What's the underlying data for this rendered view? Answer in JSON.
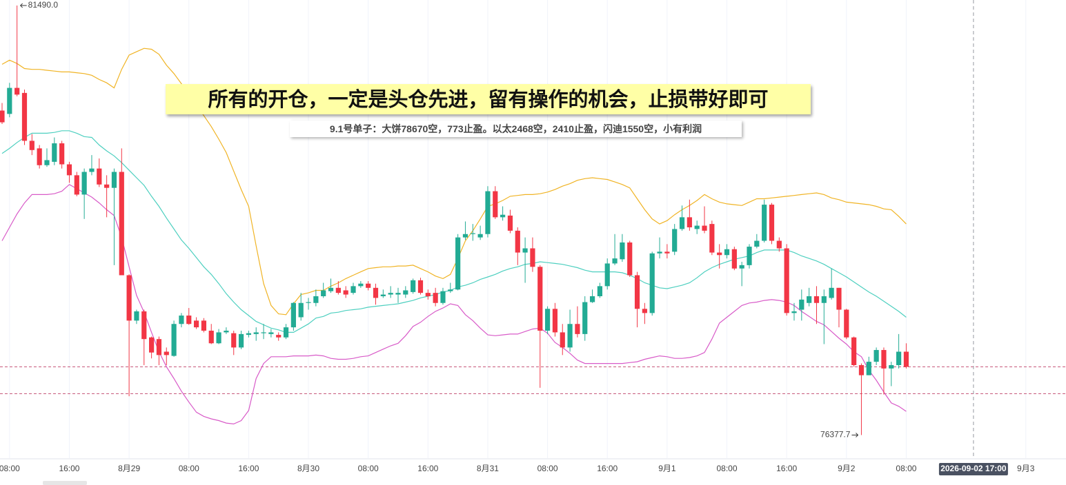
{
  "chart_data": {
    "type": "candlestick",
    "title": "所有的开仓，一定是头仓先进，留有操作的机会，止损带好即可",
    "subtitle": "9.1号单子：大饼78670空，773止盈。以太2468空，2410止盈，闪迪1550空，小有利润",
    "categories": [
      null,
      "08:00",
      null,
      null,
      null,
      null,
      null,
      null,
      null,
      "16:00",
      null,
      null,
      null,
      null,
      null,
      null,
      null,
      "8月29",
      null,
      null,
      null,
      null,
      null,
      null,
      null,
      "08:00",
      null,
      null,
      null,
      null,
      null,
      null,
      null,
      "16:00",
      null,
      null,
      null,
      null,
      null,
      null,
      null,
      "8月30",
      null,
      null,
      null,
      null,
      null,
      null,
      null,
      "08:00",
      null,
      null,
      null,
      null,
      null,
      null,
      null,
      "16:00",
      null,
      null,
      null,
      null,
      null,
      null,
      null,
      "8月31",
      null,
      null,
      null,
      null,
      null,
      null,
      null,
      "08:00",
      null,
      null,
      null,
      null,
      null,
      null,
      null,
      "16:00",
      null,
      null,
      null,
      null,
      null,
      null,
      null,
      "9月1",
      null,
      null,
      null,
      null,
      null,
      null,
      null,
      "08:00",
      null,
      null,
      null,
      null,
      null,
      null,
      null,
      "16:00",
      null,
      null,
      null,
      null,
      null,
      null,
      null,
      "9月2",
      null,
      null,
      null,
      null,
      null,
      null,
      null,
      "08:00",
      null,
      null,
      null,
      null,
      null,
      null,
      null,
      null,
      "2026-09-02 17:00",
      null,
      null,
      null,
      null,
      null,
      null,
      "9月3"
    ],
    "open": [
      80240,
      80200,
      80510,
      80450,
      79880,
      79790,
      79590,
      79630,
      79850,
      79600,
      79470,
      79240,
      79510,
      79550,
      79360,
      79320,
      79510,
      78280,
      77740,
      77850,
      77540,
      77520,
      77370,
      77320,
      77700,
      77800,
      77740,
      77740,
      77620,
      77470,
      77600,
      77590,
      77420,
      77570,
      77580,
      77590,
      77580,
      77570,
      77540,
      77660,
      77780,
      77950,
      77950,
      78030,
      78090,
      78130,
      78100,
      78070,
      78150,
      78180,
      78130,
      78030,
      78050,
      78050,
      78050,
      78080,
      78220,
      78070,
      78070,
      77950,
      78090,
      78110,
      78730,
      78770,
      78730,
      78770,
      79280,
      78970,
      78990,
      78810,
      78550,
      78600,
      78380,
      77620,
      77880,
      77600,
      77420,
      77700,
      77580,
      77960,
      78030,
      78150,
      78420,
      78470,
      78670,
      78280,
      77880,
      77830,
      78540,
      78560,
      78560,
      78830,
      78970,
      78830,
      78870,
      78890,
      78550,
      78520,
      78590,
      78360,
      78400,
      78620,
      78690,
      79120,
      78690,
      78600,
      77830,
      77870,
      77950,
      78030,
      77950,
      78010,
      78130,
      77870,
      77540,
      77210,
      77090,
      77250,
      77390,
      77170,
      77210,
      77370,
      null,
      null,
      null,
      null,
      null,
      null,
      null,
      null,
      null,
      null,
      null,
      null,
      null,
      null,
      null,
      null
    ],
    "high": [
      80330,
      80570,
      81490,
      80490,
      79960,
      79830,
      79790,
      79920,
      79880,
      79630,
      79510,
      79550,
      79710,
      79670,
      79470,
      79550,
      79790,
      78290,
      77870,
      77870,
      77550,
      77550,
      77420,
      77740,
      77830,
      77890,
      77780,
      77770,
      77700,
      77640,
      77660,
      77620,
      77620,
      77620,
      77660,
      77700,
      77640,
      77600,
      77700,
      77960,
      78070,
      78010,
      78110,
      78190,
      78240,
      78210,
      78150,
      78190,
      78210,
      78210,
      78180,
      78110,
      78150,
      78130,
      78150,
      78240,
      78250,
      78110,
      78130,
      78130,
      78190,
      78770,
      78920,
      78890,
      78870,
      79340,
      79340,
      79100,
      79060,
      78850,
      78730,
      78730,
      78400,
      77910,
      77950,
      77700,
      77870,
      77910,
      78030,
      78110,
      78190,
      78480,
      78770,
      78770,
      78690,
      78320,
      77950,
      78560,
      78730,
      78650,
      78890,
      79110,
      79180,
      78930,
      79100,
      78930,
      78650,
      78650,
      78620,
      78440,
      78650,
      78770,
      79180,
      79140,
      78730,
      78650,
      77950,
      78110,
      78130,
      78150,
      78110,
      78360,
      78130,
      77880,
      77550,
      77230,
      77310,
      77420,
      77420,
      77250,
      77580,
      77470,
      null,
      null,
      null,
      null,
      null,
      null,
      null,
      null,
      null,
      null,
      null,
      null,
      null,
      null,
      null,
      null
    ],
    "low": [
      80080,
      80160,
      80410,
      79830,
      79710,
      79550,
      79570,
      79590,
      79550,
      79380,
      79220,
      78950,
      79470,
      79330,
      78970,
      78400,
      78280,
      76840,
      77700,
      77210,
      77290,
      77210,
      77210,
      77310,
      77660,
      77690,
      77640,
      77600,
      77460,
      77460,
      77580,
      77330,
      77400,
      77540,
      77500,
      77520,
      77540,
      77500,
      77520,
      77620,
      77740,
      77870,
      77910,
      78010,
      78070,
      78050,
      78010,
      78050,
      78130,
      78100,
      77930,
      78010,
      78010,
      77950,
      78010,
      78060,
      78050,
      77990,
      77910,
      77930,
      78070,
      78100,
      78700,
      78690,
      78700,
      78730,
      78950,
      78930,
      78780,
      78400,
      78190,
      78320,
      76940,
      77580,
      77550,
      77330,
      77370,
      77540,
      77500,
      77950,
      78010,
      78110,
      78400,
      78440,
      78260,
      77660,
      77700,
      77800,
      78480,
      78480,
      78520,
      78810,
      78810,
      78770,
      78780,
      78520,
      78360,
      78480,
      78340,
      78150,
      78360,
      78600,
      78670,
      78650,
      78560,
      77800,
      77740,
      77740,
      77910,
      77700,
      77460,
      77990,
      77660,
      77520,
      77190,
      76377.7,
      77090,
      77210,
      76860,
      76960,
      77170,
      77170,
      null,
      null,
      null,
      null,
      null,
      null,
      null,
      null,
      null,
      null,
      null,
      null,
      null,
      null,
      null,
      null
    ],
    "close": [
      80100,
      80510,
      80430,
      79880,
      79770,
      79590,
      79650,
      79850,
      79600,
      79470,
      79240,
      79510,
      79550,
      79360,
      79320,
      79510,
      78280,
      77740,
      77850,
      77520,
      77360,
      77330,
      77330,
      77700,
      77800,
      77700,
      77660,
      77620,
      77470,
      77600,
      77620,
      77420,
      77580,
      77590,
      77600,
      77600,
      77600,
      77540,
      77660,
      77950,
      77950,
      77960,
      78030,
      78100,
      78130,
      78070,
      78050,
      78150,
      78180,
      78130,
      78010,
      78050,
      78070,
      78070,
      78100,
      78220,
      78070,
      78030,
      77950,
      78090,
      78110,
      78730,
      78770,
      78780,
      78770,
      79280,
      78970,
      79000,
      78810,
      78550,
      78600,
      78380,
      77620,
      77880,
      77600,
      77420,
      77700,
      77580,
      77960,
      78030,
      78150,
      78420,
      78480,
      78670,
      78280,
      77880,
      77830,
      78540,
      78560,
      78540,
      78830,
      78970,
      78850,
      78870,
      78810,
      78550,
      78520,
      78590,
      78360,
      78400,
      78620,
      78690,
      79120,
      78690,
      78600,
      77830,
      77850,
      77990,
      78030,
      77950,
      78030,
      78130,
      77870,
      77540,
      77210,
      77090,
      77250,
      77390,
      77170,
      77210,
      77370,
      77190,
      null,
      null,
      null,
      null,
      null,
      null,
      null,
      null,
      null,
      null,
      null,
      null,
      null,
      null,
      null,
      null
    ],
    "up_color": "#22ab94",
    "down_color": "#f23645",
    "lines": [
      {
        "color": "#f0b323",
        "values": [
          80790,
          80840,
          80800,
          80740,
          80730,
          80730,
          80720,
          80710,
          80700,
          80700,
          80690,
          80680,
          80660,
          80610,
          80570,
          80510,
          80730,
          80900,
          80940,
          80980,
          80970,
          80910,
          80780,
          80680,
          80560,
          80420,
          80300,
          80180,
          80050,
          79900,
          79740,
          79520,
          79300,
          79100,
          78630,
          78180,
          77920,
          77820,
          77810,
          77940,
          78050,
          78070,
          78100,
          78100,
          78150,
          78190,
          78240,
          78280,
          78320,
          78360,
          78370,
          78380,
          78380,
          78390,
          78390,
          78400,
          78360,
          78320,
          78270,
          78240,
          78290,
          78480,
          78690,
          78810,
          78950,
          79100,
          79130,
          79170,
          79220,
          79230,
          79240,
          79240,
          79250,
          79270,
          79300,
          79340,
          79370,
          79410,
          79430,
          79440,
          79430,
          79420,
          79390,
          79360,
          79320,
          79190,
          79060,
          78950,
          78890,
          78930,
          79000,
          79060,
          79110,
          79170,
          79240,
          79190,
          79150,
          79130,
          79120,
          79110,
          79150,
          79190,
          79190,
          79200,
          79210,
          79220,
          79230,
          79240,
          79250,
          79260,
          79240,
          79200,
          79180,
          79150,
          79140,
          79130,
          79120,
          79100,
          79070,
          79060,
          78980,
          78890,
          null,
          null,
          null,
          null,
          null,
          null,
          null,
          null,
          null,
          null,
          null,
          null,
          null,
          null,
          null,
          null
        ]
      },
      {
        "color": "#4ccfbf",
        "values": [
          79730,
          79790,
          79860,
          79920,
          79970,
          79970,
          79970,
          79980,
          80000,
          80000,
          79970,
          79930,
          79920,
          79830,
          79760,
          79700,
          79620,
          79530,
          79440,
          79350,
          79220,
          79100,
          78960,
          78830,
          78700,
          78600,
          78490,
          78380,
          78290,
          78180,
          78060,
          77960,
          77870,
          77800,
          77730,
          77690,
          77650,
          77630,
          77600,
          77600,
          77650,
          77700,
          77770,
          77790,
          77830,
          77840,
          77860,
          77870,
          77880,
          77900,
          77910,
          77920,
          77930,
          77940,
          77960,
          77980,
          78010,
          78030,
          78050,
          78080,
          78100,
          78140,
          78160,
          78190,
          78230,
          78260,
          78290,
          78330,
          78360,
          78380,
          78410,
          78420,
          78440,
          78430,
          78420,
          78410,
          78390,
          78370,
          78340,
          78320,
          78320,
          78320,
          78320,
          78310,
          78280,
          78240,
          78190,
          78160,
          78130,
          78120,
          78140,
          78160,
          78190,
          78250,
          78320,
          78370,
          78410,
          78440,
          78470,
          78490,
          78510,
          78550,
          78580,
          78580,
          78580,
          78580,
          78550,
          78510,
          78480,
          78450,
          78410,
          78360,
          78310,
          78260,
          78200,
          78140,
          78080,
          78030,
          77970,
          77910,
          77850,
          77780,
          null,
          null,
          null,
          null,
          null,
          null,
          null,
          null,
          null,
          null,
          null,
          null,
          null,
          null,
          null,
          null
        ]
      },
      {
        "color": "#d85ac8",
        "values": [
          78690,
          78850,
          79010,
          79140,
          79240,
          79240,
          79240,
          79250,
          79280,
          79360,
          79310,
          79260,
          79210,
          79140,
          79060,
          78990,
          78730,
          78380,
          78040,
          77840,
          77600,
          77370,
          77190,
          77050,
          76900,
          76770,
          76650,
          76600,
          76570,
          76550,
          76520,
          76510,
          76550,
          76670,
          77050,
          77230,
          77310,
          77310,
          77310,
          77320,
          77320,
          77320,
          77330,
          77320,
          77290,
          77280,
          77280,
          77290,
          77310,
          77320,
          77360,
          77400,
          77440,
          77470,
          77560,
          77670,
          77720,
          77790,
          77850,
          77890,
          77940,
          77920,
          77810,
          77740,
          77650,
          77570,
          77560,
          77570,
          77580,
          77580,
          77610,
          77640,
          77650,
          77590,
          77480,
          77420,
          77350,
          77270,
          77230,
          77230,
          77230,
          77230,
          77230,
          77230,
          77240,
          77250,
          77280,
          77300,
          77320,
          77310,
          77290,
          77290,
          77300,
          77320,
          77360,
          77520,
          77710,
          77780,
          77850,
          77920,
          77950,
          77960,
          77980,
          77990,
          77980,
          77960,
          77920,
          77850,
          77790,
          77730,
          77690,
          77610,
          77530,
          77460,
          77370,
          77310,
          77150,
          77030,
          76890,
          76760,
          76720,
          76660,
          null,
          null,
          null,
          null,
          null,
          null,
          null,
          null,
          null,
          null,
          null,
          null,
          null,
          null,
          null,
          null
        ]
      }
    ],
    "price_lines": [
      77190,
      76870
    ],
    "price_line_color": "#c7587a",
    "high_marker": {
      "value": 81490,
      "label": "81490.0"
    },
    "low_marker": {
      "value": 76377.7,
      "label": "76377.7"
    },
    "crosshair": "2026-09-02 17:00",
    "ylim": [
      76103,
      81556
    ],
    "grid": true
  }
}
